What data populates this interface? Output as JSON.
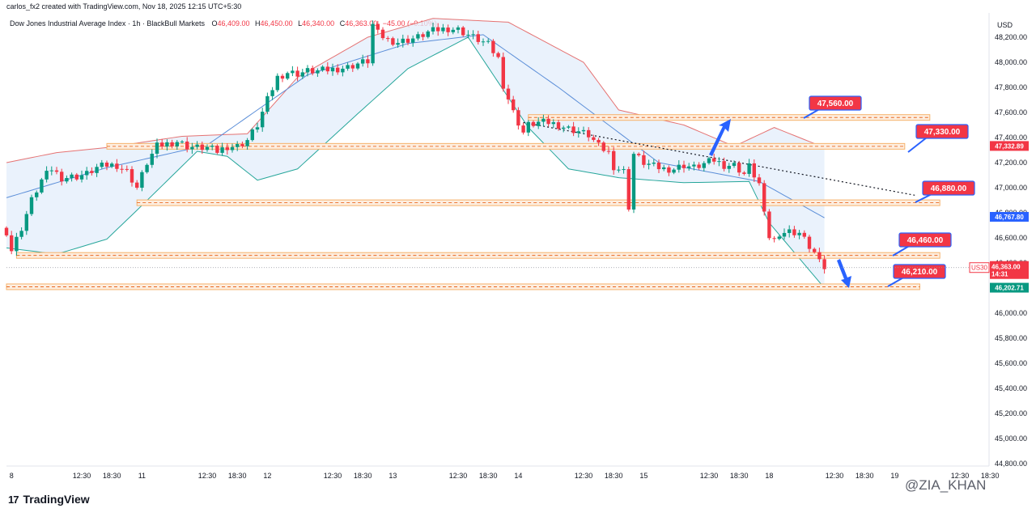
{
  "header": {
    "text": "carlos_fx2 created with TradingView.com, Nov 18, 2025 12:15 UTC+5:30"
  },
  "legend": {
    "symbol": "Dow Jones Industrial Average Index · 1h · BlackBull Markets",
    "o_key": "O",
    "o_val": "46,409.00",
    "h_key": "H",
    "h_val": "46,450.00",
    "l_key": "L",
    "l_val": "46,340.00",
    "c_key": "C",
    "c_val": "46,363.00",
    "chg": "−45.00 (−0.10%)"
  },
  "chart_data": {
    "type": "candlestick",
    "currency": "USD",
    "ylim": [
      44760,
      48320
    ],
    "yticks": [
      "48,200.00",
      "48,000.00",
      "47,800.00",
      "47,600.00",
      "47,400.00",
      "47,200.00",
      "47,000.00",
      "46,800.00",
      "46,600.00",
      "46,400.00",
      "46,200.00",
      "46,000.00",
      "45,800.00",
      "45,600.00",
      "45,400.00",
      "45,200.00",
      "45,000.00",
      "44,800.00"
    ],
    "ytick_values": [
      48200,
      48000,
      47800,
      47600,
      47400,
      47200,
      47000,
      46800,
      46600,
      46400,
      46200,
      46000,
      45800,
      45600,
      45400,
      45200,
      45000,
      44800
    ],
    "xticks": [
      {
        "label": "8",
        "bar": 1
      },
      {
        "label": "12:30",
        "bar": 15
      },
      {
        "label": "18:30",
        "bar": 21
      },
      {
        "label": "11",
        "bar": 27
      },
      {
        "label": "12:30",
        "bar": 40
      },
      {
        "label": "18:30",
        "bar": 46
      },
      {
        "label": "12",
        "bar": 52
      },
      {
        "label": "12:30",
        "bar": 65
      },
      {
        "label": "18:30",
        "bar": 71
      },
      {
        "label": "13",
        "bar": 77
      },
      {
        "label": "12:30",
        "bar": 90
      },
      {
        "label": "18:30",
        "bar": 96
      },
      {
        "label": "14",
        "bar": 102
      },
      {
        "label": "12:30",
        "bar": 115
      },
      {
        "label": "18:30",
        "bar": 121
      },
      {
        "label": "15",
        "bar": 127
      },
      {
        "label": "12:30",
        "bar": 140
      },
      {
        "label": "18:30",
        "bar": 146
      },
      {
        "label": "18",
        "bar": 152
      },
      {
        "label": "12:30",
        "bar": 165
      },
      {
        "label": "18:30",
        "bar": 171
      },
      {
        "label": "19",
        "bar": 177
      },
      {
        "label": "12:30",
        "bar": 190
      },
      {
        "label": "18:30",
        "bar": 196
      }
    ],
    "close_path": [
      [
        0,
        46650
      ],
      [
        1,
        46500
      ],
      [
        3,
        46680
      ],
      [
        5,
        46900
      ],
      [
        7,
        47060
      ],
      [
        9,
        47150
      ],
      [
        11,
        47080
      ],
      [
        14,
        47090
      ],
      [
        16,
        47110
      ],
      [
        18,
        47160
      ],
      [
        20,
        47180
      ],
      [
        22,
        47180
      ],
      [
        24,
        47130
      ],
      [
        26,
        47000
      ],
      [
        28,
        47200
      ],
      [
        30,
        47330
      ],
      [
        32,
        47350
      ],
      [
        34,
        47370
      ],
      [
        36,
        47330
      ],
      [
        38,
        47320
      ],
      [
        40,
        47320
      ],
      [
        42,
        47290
      ],
      [
        44,
        47330
      ],
      [
        46,
        47330
      ],
      [
        48,
        47380
      ],
      [
        50,
        47500
      ],
      [
        52,
        47700
      ],
      [
        54,
        47880
      ],
      [
        56,
        47920
      ],
      [
        58,
        47910
      ],
      [
        60,
        47930
      ],
      [
        62,
        47930
      ],
      [
        64,
        47940
      ],
      [
        66,
        47950
      ],
      [
        68,
        47960
      ],
      [
        70,
        47990
      ],
      [
        72,
        48010
      ],
      [
        73,
        48300
      ],
      [
        74,
        48230
      ],
      [
        76,
        48180
      ],
      [
        78,
        48160
      ],
      [
        80,
        48180
      ],
      [
        82,
        48200
      ],
      [
        84,
        48240
      ],
      [
        86,
        48260
      ],
      [
        88,
        48270
      ],
      [
        90,
        48260
      ],
      [
        92,
        48220
      ],
      [
        94,
        48180
      ],
      [
        96,
        48140
      ],
      [
        98,
        48030
      ],
      [
        99,
        47820
      ],
      [
        101,
        47600
      ],
      [
        103,
        47440
      ],
      [
        104,
        47500
      ],
      [
        106,
        47520
      ],
      [
        108,
        47520
      ],
      [
        110,
        47500
      ],
      [
        112,
        47470
      ],
      [
        114,
        47450
      ],
      [
        116,
        47420
      ],
      [
        118,
        47330
      ],
      [
        120,
        47280
      ],
      [
        121,
        47170
      ],
      [
        123,
        47130
      ],
      [
        124,
        46850
      ],
      [
        125,
        47270
      ],
      [
        127,
        47200
      ],
      [
        129,
        47170
      ],
      [
        131,
        47150
      ],
      [
        133,
        47150
      ],
      [
        135,
        47180
      ],
      [
        137,
        47160
      ],
      [
        139,
        47190
      ],
      [
        141,
        47220
      ],
      [
        143,
        47180
      ],
      [
        145,
        47180
      ],
      [
        147,
        47110
      ],
      [
        148,
        47170
      ],
      [
        150,
        47030
      ],
      [
        151,
        46780
      ],
      [
        152,
        46610
      ],
      [
        153,
        46580
      ],
      [
        154,
        46640
      ],
      [
        156,
        46650
      ],
      [
        158,
        46640
      ],
      [
        160,
        46530
      ],
      [
        161,
        46480
      ],
      [
        162,
        46400
      ],
      [
        163,
        46363
      ]
    ],
    "bands_mid": [
      [
        0,
        46920
      ],
      [
        20,
        47160
      ],
      [
        40,
        47340
      ],
      [
        60,
        47900
      ],
      [
        80,
        48150
      ],
      [
        95,
        48220
      ],
      [
        110,
        47800
      ],
      [
        130,
        47200
      ],
      [
        150,
        47050
      ],
      [
        163,
        46760
      ]
    ],
    "bands_up": [
      [
        0,
        47200
      ],
      [
        10,
        47280
      ],
      [
        20,
        47320
      ],
      [
        35,
        47410
      ],
      [
        48,
        47430
      ],
      [
        58,
        47880
      ],
      [
        72,
        48200
      ],
      [
        85,
        48350
      ],
      [
        100,
        48320
      ],
      [
        115,
        48000
      ],
      [
        122,
        47620
      ],
      [
        135,
        47500
      ],
      [
        145,
        47330
      ],
      [
        153,
        47480
      ],
      [
        163,
        47320
      ]
    ],
    "bands_lo": [
      [
        0,
        46520
      ],
      [
        10,
        46470
      ],
      [
        20,
        46590
      ],
      [
        26,
        46820
      ],
      [
        38,
        47290
      ],
      [
        44,
        47250
      ],
      [
        50,
        47060
      ],
      [
        58,
        47150
      ],
      [
        70,
        47590
      ],
      [
        80,
        47950
      ],
      [
        92,
        48200
      ],
      [
        104,
        47480
      ],
      [
        112,
        47150
      ],
      [
        122,
        47080
      ],
      [
        135,
        47040
      ],
      [
        148,
        47050
      ],
      [
        152,
        46720
      ],
      [
        163,
        46200
      ]
    ],
    "hlines": [
      {
        "price": 47560,
        "x0": 104,
        "x1": 184,
        "label": "47,560.00"
      },
      {
        "price": 47330,
        "x0": 20,
        "x1": 179,
        "label": "47,330.00"
      },
      {
        "price": 46880,
        "x0": 26,
        "x1": 186,
        "label": "46,880.00"
      },
      {
        "price": 46460,
        "x0": 2,
        "x1": 186,
        "label": "46,460.00"
      },
      {
        "price": 46210,
        "x0": 0,
        "x1": 182,
        "label": "46,210.00"
      }
    ],
    "trendline": [
      [
        103,
        47520
      ],
      [
        181,
        46940
      ]
    ],
    "price_labels": [
      {
        "price": 47332.89,
        "text": "47,332.89",
        "color": "#f23645"
      },
      {
        "price": 46767.8,
        "text": "46,767.80",
        "color": "#2962ff"
      },
      {
        "price": 46202.71,
        "text": "46,202.71",
        "color": "#089981"
      }
    ],
    "last_price": {
      "symbol": "US30",
      "price": 46363,
      "text": "46,363.00",
      "countdown": "14:31"
    }
  },
  "branding": {
    "logo": "TradingView",
    "logo_mark": "17",
    "watermark": "@ZIA_KHAN"
  },
  "colors": {
    "up": "#089981",
    "down": "#f23645",
    "band_fill": "#e3eefb",
    "mid": "#5b8ed8",
    "hline": "#f6b26b"
  }
}
